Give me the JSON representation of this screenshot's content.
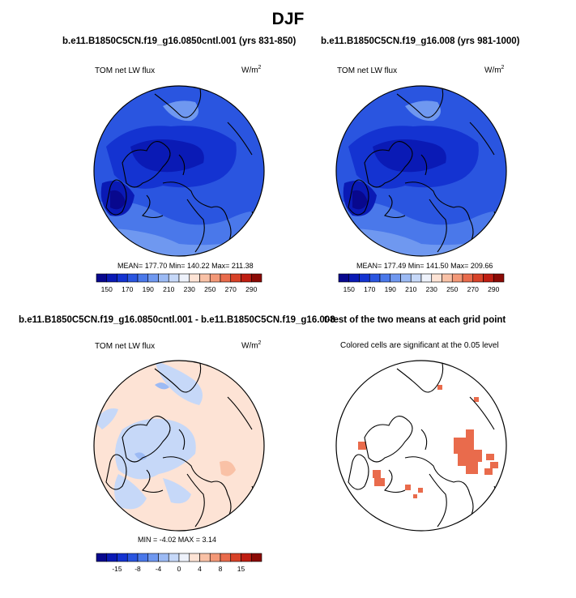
{
  "figure": {
    "title": "DJF"
  },
  "panels": [
    {
      "title": "b.e11.B1850C5CN.f19_g16.0850cntl.001 (yrs 831-850)",
      "left_label": "TOM net LW flux",
      "unit_base": "W/m",
      "unit_exp": "2",
      "stats": "MEAN= 177.70  Min= 140.22  Max= 211.38"
    },
    {
      "title": "b.e11.B1850C5CN.f19_g16.008 (yrs 981-1000)",
      "left_label": "TOM net LW flux",
      "unit_base": "W/m",
      "unit_exp": "2",
      "stats": "MEAN= 177.49  Min= 141.50  Max= 209.66"
    },
    {
      "title": "b.e11.B1850C5CN.f19_g16.0850cntl.001 - b.e11.B1850C5CN.f19_g16.008",
      "left_label": "TOM net LW flux",
      "unit_base": "W/m",
      "unit_exp": "2",
      "stats": "MIN =  -4.02 MAX =  3.14"
    },
    {
      "title": "t-test of the two means at each grid point",
      "center_label": "Colored cells are significant at the 0.05 level"
    }
  ],
  "colorbars": {
    "absolute": {
      "labels": [
        "150",
        "170",
        "190",
        "210",
        "230",
        "250",
        "270",
        "290"
      ],
      "colors": [
        "#08088e",
        "#0a1ab5",
        "#1433d1",
        "#2a55e0",
        "#4a78ea",
        "#6f98f0",
        "#9cbaf4",
        "#c6d8f8",
        "#eef2fb",
        "#fde3d5",
        "#f9c1a6",
        "#f39877",
        "#e96b4c",
        "#d84228",
        "#bf1e12",
        "#8b0a05"
      ]
    },
    "difference": {
      "labels": [
        "-15",
        "-8",
        "-4",
        "0",
        "4",
        "8",
        "15"
      ],
      "colors": [
        "#08088e",
        "#0a1ab5",
        "#1433d1",
        "#2a55e0",
        "#4a78ea",
        "#6f98f0",
        "#9cbaf4",
        "#c6d8f8",
        "#eef2fb",
        "#fde3d5",
        "#f9c1a6",
        "#f39877",
        "#e96b4c",
        "#d84228",
        "#bf1e12",
        "#8b0a05"
      ]
    }
  },
  "chart_data": [
    {
      "type": "heatmap",
      "title": "b.e11.B1850C5CN.f19_g16.0850cntl.001 (yrs 831-850)",
      "variable": "TOM net LW flux",
      "units": "W/m2",
      "mean": 177.7,
      "min": 140.22,
      "max": 211.38,
      "colorbar_levels": [
        150,
        170,
        190,
        210,
        230,
        250,
        270,
        290
      ]
    },
    {
      "type": "heatmap",
      "title": "b.e11.B1850C5CN.f19_g16.008 (yrs 981-1000)",
      "variable": "TOM net LW flux",
      "units": "W/m2",
      "mean": 177.49,
      "min": 141.5,
      "max": 209.66,
      "colorbar_levels": [
        150,
        170,
        190,
        210,
        230,
        250,
        270,
        290
      ]
    },
    {
      "type": "heatmap",
      "title": "b.e11.B1850C5CN.f19_g16.0850cntl.001 - b.e11.B1850C5CN.f19_g16.008",
      "variable": "TOM net LW flux",
      "units": "W/m2",
      "min": -4.02,
      "max": 3.14,
      "colorbar_levels": [
        -15,
        -8,
        -4,
        0,
        4,
        8,
        15
      ]
    },
    {
      "type": "heatmap",
      "title": "t-test of the two means at each grid point",
      "note": "Colored cells are significant at the 0.05 level"
    }
  ]
}
